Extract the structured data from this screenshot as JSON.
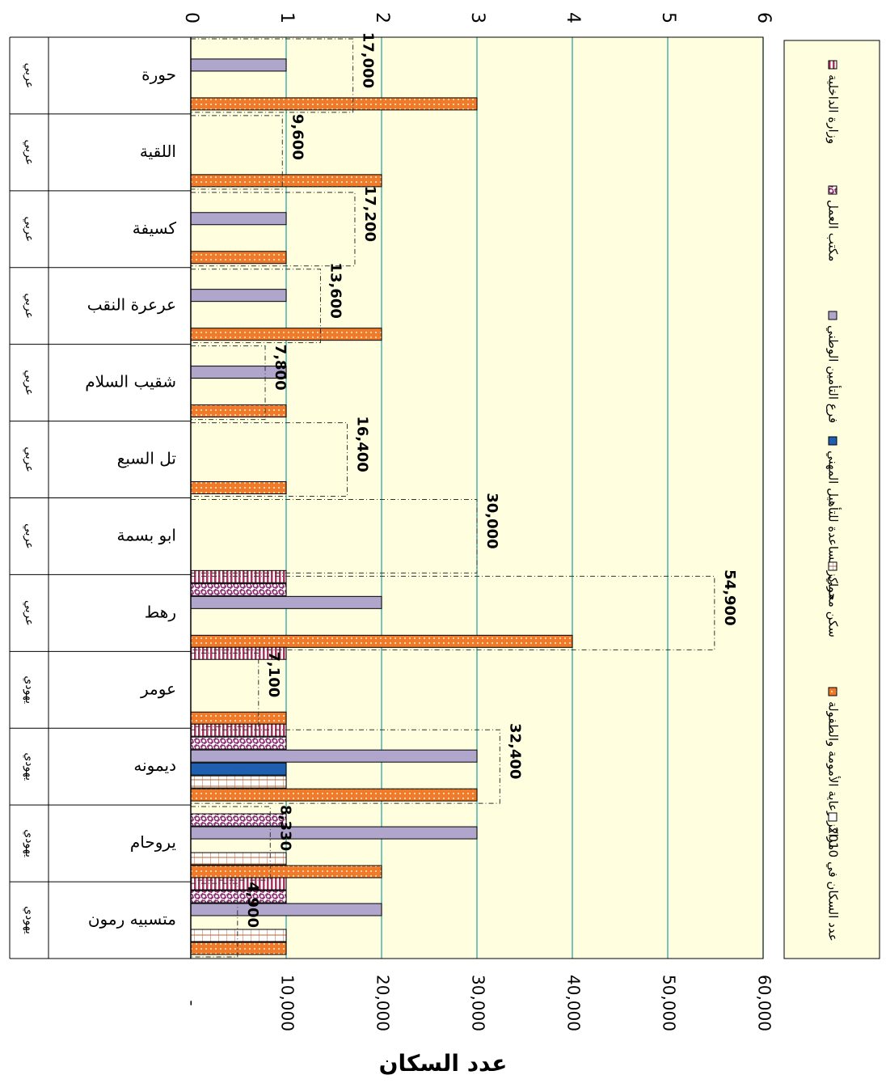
{
  "chart_data": {
    "type": "bar",
    "orientation": "horizontal",
    "xlabel": "عدد السكان",
    "primary_axis": {
      "range": [
        0,
        6
      ],
      "ticks": [
        "0",
        "1",
        "2",
        "3",
        "4",
        "5",
        "6"
      ]
    },
    "secondary_axis": {
      "range": [
        0,
        60000
      ],
      "ticks": [
        "-",
        "10,000",
        "20,000",
        "30,000",
        "40,000",
        "50,000",
        "60,000"
      ]
    },
    "grid": true,
    "legend_position": "right",
    "categories": [
      {
        "name": "حورة",
        "type": "عربي"
      },
      {
        "name": "اللقية",
        "type": "عربي"
      },
      {
        "name": "كسيفة",
        "type": "عربي"
      },
      {
        "name": "عرعرة النقب",
        "type": "عربي"
      },
      {
        "name": "شقيب السلام",
        "type": "عربي"
      },
      {
        "name": "تل السبع",
        "type": "عربي"
      },
      {
        "name": "ابو بسمة",
        "type": "عربي"
      },
      {
        "name": "رهط",
        "type": "عربي"
      },
      {
        "name": "عومر",
        "type": "يهودي"
      },
      {
        "name": "ديمونه",
        "type": "يهودي"
      },
      {
        "name": "يروحام",
        "type": "يهودي"
      },
      {
        "name": "متسبيه رمون",
        "type": "يهودي"
      }
    ],
    "series": [
      {
        "name": "وزارة الداخلية",
        "color": "#ad4c6e",
        "pattern": "vstripe",
        "values": [
          0,
          0,
          0,
          0,
          0,
          0,
          0,
          1,
          1,
          1,
          0,
          1
        ]
      },
      {
        "name": "مكتب العمل",
        "color": "#9a3f7a",
        "pattern": "wave",
        "values": [
          0,
          0,
          0,
          0,
          0,
          0,
          0,
          1,
          0,
          1,
          1,
          1
        ]
      },
      {
        "name": "فرع التأمين الوطني",
        "color": "#b0a6cc",
        "pattern": "solid",
        "values": [
          1,
          0,
          1,
          1,
          1,
          0,
          0,
          2,
          0,
          3,
          3,
          2
        ]
      },
      {
        "name": "مراكز مساعدة للتأهيل المهني",
        "color": "#1f5fb0",
        "pattern": "solid",
        "values": [
          0,
          0,
          0,
          0,
          0,
          0,
          0,
          0,
          0,
          1,
          0,
          0
        ]
      },
      {
        "name": "سكن محمي",
        "color": "#fffbe0",
        "pattern": "grid",
        "values": [
          0,
          0,
          0,
          0,
          0,
          0,
          0,
          0,
          0,
          1,
          1,
          1
        ]
      },
      {
        "name": "مراكز رعاية الأمومة والطفولة",
        "color": "#ee7a2c",
        "pattern": "dots",
        "values": [
          3,
          2,
          1,
          2,
          1,
          1,
          0,
          4,
          1,
          3,
          2,
          1
        ]
      }
    ],
    "population_series": {
      "name": "عدد السكان في 2010",
      "values": [
        17000,
        9600,
        17200,
        13600,
        7800,
        16400,
        30000,
        54900,
        7100,
        32400,
        8330,
        4900
      ],
      "labels": [
        "17,000",
        "9,600",
        "17,200",
        "13,600",
        "7,800",
        "16,400",
        "30,000",
        "54,900",
        "7,100",
        "32,400",
        "8,330",
        "4,900"
      ]
    }
  }
}
